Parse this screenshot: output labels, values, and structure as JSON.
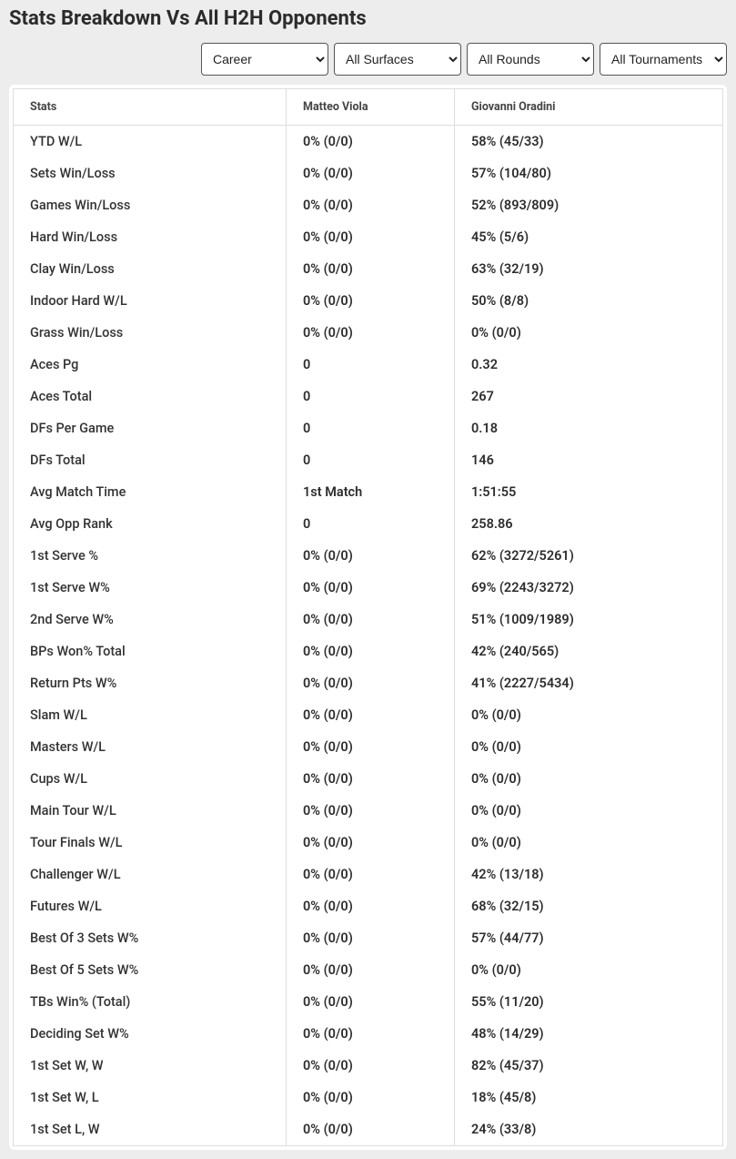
{
  "title": "Stats Breakdown Vs All H2H Opponents",
  "filters": {
    "career": "Career",
    "surface": "All Surfaces",
    "round": "All Rounds",
    "tournament": "All Tournaments"
  },
  "columns": {
    "stats": "Stats",
    "player1": "Matteo Viola",
    "player2": "Giovanni Oradini"
  },
  "rows": [
    {
      "stat": "YTD W/L",
      "p1": "0% (0/0)",
      "p2": "58% (45/33)"
    },
    {
      "stat": "Sets Win/Loss",
      "p1": "0% (0/0)",
      "p2": "57% (104/80)"
    },
    {
      "stat": "Games Win/Loss",
      "p1": "0% (0/0)",
      "p2": "52% (893/809)"
    },
    {
      "stat": "Hard Win/Loss",
      "p1": "0% (0/0)",
      "p2": "45% (5/6)"
    },
    {
      "stat": "Clay Win/Loss",
      "p1": "0% (0/0)",
      "p2": "63% (32/19)"
    },
    {
      "stat": "Indoor Hard W/L",
      "p1": "0% (0/0)",
      "p2": "50% (8/8)"
    },
    {
      "stat": "Grass Win/Loss",
      "p1": "0% (0/0)",
      "p2": "0% (0/0)"
    },
    {
      "stat": "Aces Pg",
      "p1": "0",
      "p2": "0.32"
    },
    {
      "stat": "Aces Total",
      "p1": "0",
      "p2": "267"
    },
    {
      "stat": "DFs Per Game",
      "p1": "0",
      "p2": "0.18"
    },
    {
      "stat": "DFs Total",
      "p1": "0",
      "p2": "146"
    },
    {
      "stat": "Avg Match Time",
      "p1": "1st Match",
      "p2": "1:51:55"
    },
    {
      "stat": "Avg Opp Rank",
      "p1": "0",
      "p2": "258.86"
    },
    {
      "stat": "1st Serve %",
      "p1": "0% (0/0)",
      "p2": "62% (3272/5261)"
    },
    {
      "stat": "1st Serve W%",
      "p1": "0% (0/0)",
      "p2": "69% (2243/3272)"
    },
    {
      "stat": "2nd Serve W%",
      "p1": "0% (0/0)",
      "p2": "51% (1009/1989)"
    },
    {
      "stat": "BPs Won% Total",
      "p1": "0% (0/0)",
      "p2": "42% (240/565)"
    },
    {
      "stat": "Return Pts W%",
      "p1": "0% (0/0)",
      "p2": "41% (2227/5434)"
    },
    {
      "stat": "Slam W/L",
      "p1": "0% (0/0)",
      "p2": "0% (0/0)"
    },
    {
      "stat": "Masters W/L",
      "p1": "0% (0/0)",
      "p2": "0% (0/0)"
    },
    {
      "stat": "Cups W/L",
      "p1": "0% (0/0)",
      "p2": "0% (0/0)"
    },
    {
      "stat": "Main Tour W/L",
      "p1": "0% (0/0)",
      "p2": "0% (0/0)"
    },
    {
      "stat": "Tour Finals W/L",
      "p1": "0% (0/0)",
      "p2": "0% (0/0)"
    },
    {
      "stat": "Challenger W/L",
      "p1": "0% (0/0)",
      "p2": "42% (13/18)"
    },
    {
      "stat": "Futures W/L",
      "p1": "0% (0/0)",
      "p2": "68% (32/15)"
    },
    {
      "stat": "Best Of 3 Sets W%",
      "p1": "0% (0/0)",
      "p2": "57% (44/77)"
    },
    {
      "stat": "Best Of 5 Sets W%",
      "p1": "0% (0/0)",
      "p2": "0% (0/0)"
    },
    {
      "stat": "TBs Win% (Total)",
      "p1": "0% (0/0)",
      "p2": "55% (11/20)"
    },
    {
      "stat": "Deciding Set W%",
      "p1": "0% (0/0)",
      "p2": "48% (14/29)"
    },
    {
      "stat": "1st Set W, W",
      "p1": "0% (0/0)",
      "p2": "82% (45/37)"
    },
    {
      "stat": "1st Set W, L",
      "p1": "0% (0/0)",
      "p2": "18% (45/8)"
    },
    {
      "stat": "1st Set L, W",
      "p1": "0% (0/0)",
      "p2": "24% (33/8)"
    }
  ]
}
